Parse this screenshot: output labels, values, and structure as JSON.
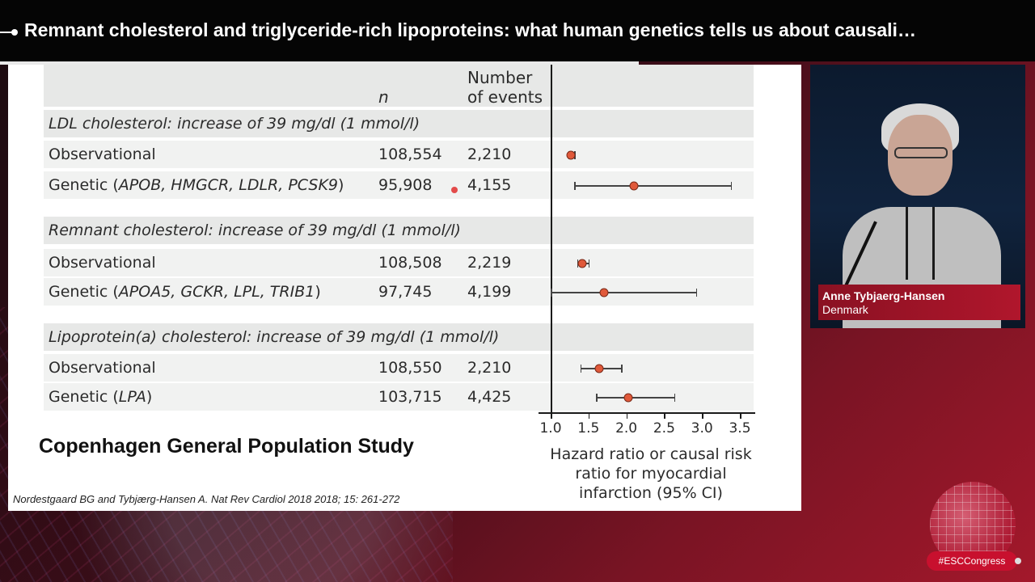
{
  "header": {
    "title": "Remnant cholesterol and triglyceride-rich lipoproteins: what human genetics tells us about causali…"
  },
  "slide": {
    "col_n": "n",
    "col_events_line1": "Number",
    "col_events_line2": "of events",
    "groups": [
      {
        "title": "LDL cholesterol: increase of 39 mg/dl (1 mmol/l)",
        "rows": [
          {
            "label": "Observational",
            "n": "108,554",
            "events": "2,210",
            "hr": 1.27,
            "ci": [
              1.24,
              1.31
            ]
          },
          {
            "label_prefix": "Genetic (",
            "label_genes": "APOB, HMGCR, LDLR, PCSK9",
            "label_suffix": ")",
            "n": "95,908",
            "events": "4,155",
            "hr": 2.1,
            "ci": [
              1.31,
              3.38
            ]
          }
        ]
      },
      {
        "title": "Remnant cholesterol: increase of 39 mg/dl (1 mmol/l)",
        "rows": [
          {
            "label": "Observational",
            "n": "108,508",
            "events": "2,219",
            "hr": 1.42,
            "ci": [
              1.35,
              1.5
            ]
          },
          {
            "label_prefix": "Genetic (",
            "label_genes": "APOA5, GCKR, LPL, TRIB1",
            "label_suffix": ")",
            "n": "97,745",
            "events": "4,199",
            "hr": 1.71,
            "ci": [
              1.0,
              2.92
            ]
          }
        ]
      },
      {
        "title": "Lipoprotein(a) cholesterol: increase of 39 mg/dl (1 mmol/l)",
        "rows": [
          {
            "label": "Observational",
            "n": "108,550",
            "events": "2,210",
            "hr": 1.64,
            "ci": [
              1.39,
              1.93
            ]
          },
          {
            "label_prefix": "Genetic (",
            "label_genes": "LPA",
            "label_suffix": ")",
            "n": "103,715",
            "events": "4,425",
            "hr": 2.03,
            "ci": [
              1.6,
              2.63
            ]
          }
        ]
      }
    ],
    "axis_ticks": [
      "1.0",
      "1.5",
      "2.0",
      "2.5",
      "3.0",
      "3.5"
    ],
    "xlabel_line1": "Hazard ratio or causal risk",
    "xlabel_line2": "ratio for myocardial",
    "xlabel_line3": "infarction (95% CI)",
    "study_title": "Copenhagen General Population Study",
    "citation": "Nordestgaard BG and Tybjærg-Hansen A. Nat Rev Cardiol 2018 2018; 15: 261-272"
  },
  "chart_data": {
    "type": "scatter",
    "xlabel": "Hazard ratio or causal risk ratio for myocardial infarction (95% CI)",
    "xlim": [
      1.0,
      3.5
    ],
    "categories": [
      "LDL Observational",
      "LDL Genetic (APOB, HMGCR, LDLR, PCSK9)",
      "Remnant Observational",
      "Remnant Genetic (APOA5, GCKR, LPL, TRIB1)",
      "Lp(a) Observational",
      "Lp(a) Genetic (LPA)"
    ],
    "values": [
      1.27,
      2.1,
      1.42,
      1.71,
      1.64,
      2.03
    ],
    "ci_low": [
      1.24,
      1.31,
      1.35,
      1.0,
      1.39,
      1.6
    ],
    "ci_high": [
      1.31,
      3.38,
      1.5,
      2.92,
      1.93,
      2.63
    ],
    "colors": {
      "point": "#e0593a",
      "line": "#444444"
    }
  },
  "speaker": {
    "name": "Anne Tybjaerg-Hansen",
    "country": "Denmark"
  },
  "footer": {
    "hashtag": "#ESCCongress"
  }
}
